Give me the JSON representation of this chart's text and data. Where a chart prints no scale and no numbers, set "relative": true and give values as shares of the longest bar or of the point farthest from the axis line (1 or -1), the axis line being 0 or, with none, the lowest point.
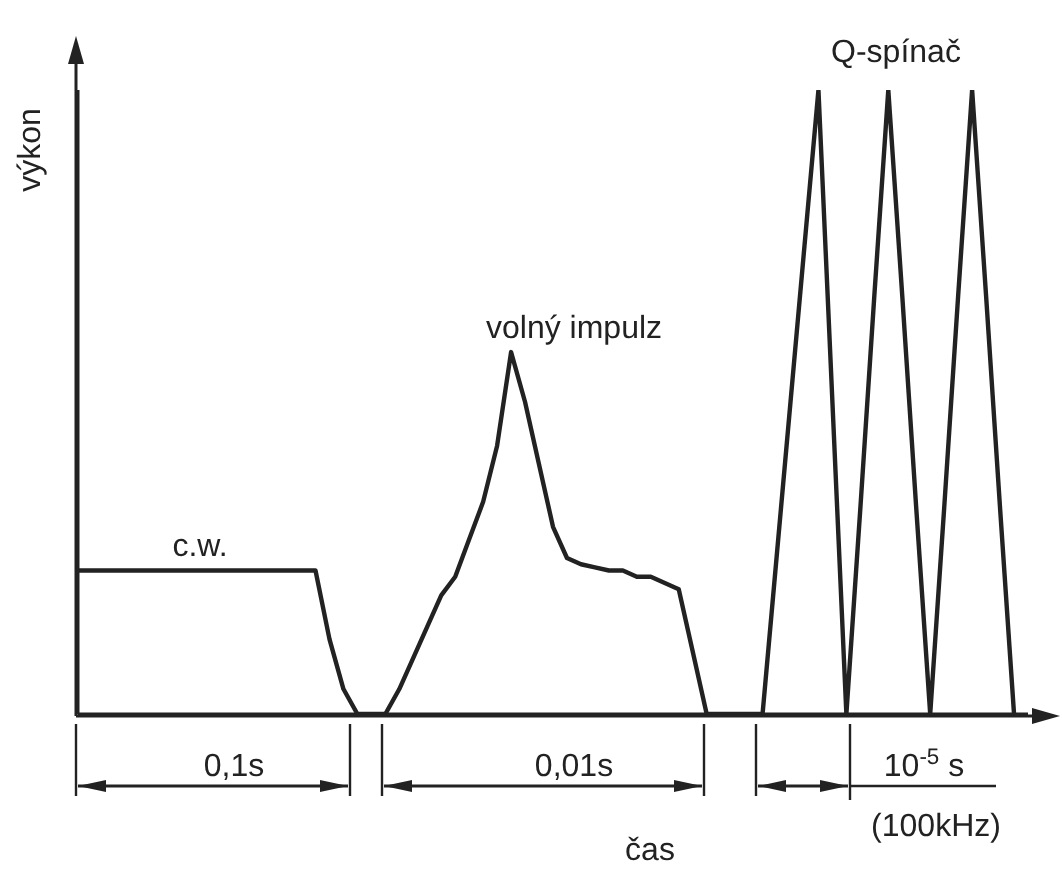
{
  "chart_data": {
    "type": "line",
    "relative": true,
    "xlabel": "čas",
    "ylabel": "výkon",
    "grid": false,
    "marker": "none",
    "line_style": "solid",
    "categories": [
      null,
      null,
      null,
      null,
      null,
      null,
      null,
      null,
      null,
      null,
      null,
      null,
      null,
      null,
      null,
      null,
      null,
      null,
      null,
      null,
      null,
      null,
      null,
      null,
      null,
      null,
      null,
      null,
      null,
      null,
      null,
      null,
      null,
      null,
      null,
      null,
      null,
      null,
      null,
      null,
      null,
      null,
      null,
      null,
      null,
      null,
      null,
      null,
      null,
      null,
      null,
      null,
      null,
      null,
      null,
      null,
      null,
      null,
      null,
      null,
      null,
      null,
      null,
      null,
      null,
      null,
      null,
      null,
      null
    ],
    "series": [
      {
        "color": "#222222",
        "values": [
          0.23,
          0.23,
          0.23,
          0.23,
          0.23,
          0.23,
          0.23,
          0.23,
          0.23,
          0.23,
          0.23,
          0.23,
          0.23,
          0.23,
          0.23,
          0.23,
          0.23,
          0.23,
          0.12,
          0.04,
          0,
          0,
          0,
          0.04,
          0.09,
          0.14,
          0.19,
          0.22,
          0.28,
          0.34,
          0.43,
          0.58,
          0.5,
          0.4,
          0.3,
          0.25,
          0.24,
          0.235,
          0.23,
          0.23,
          0.22,
          0.22,
          0.21,
          0.2,
          0.1,
          0,
          0,
          0,
          0,
          0,
          0.25,
          0.5,
          0.75,
          1,
          0.5,
          0,
          0.33,
          0.67,
          1,
          0.67,
          0.33,
          0,
          0.33,
          0.67,
          1,
          0.67,
          0.33,
          0,
          null
        ]
      }
    ],
    "annotations": [
      "c.w.",
      "volný impulz",
      "Q-spínač",
      "0,1s",
      "0,01s",
      "10$^{-5}$ s",
      "(100kHz)"
    ]
  }
}
